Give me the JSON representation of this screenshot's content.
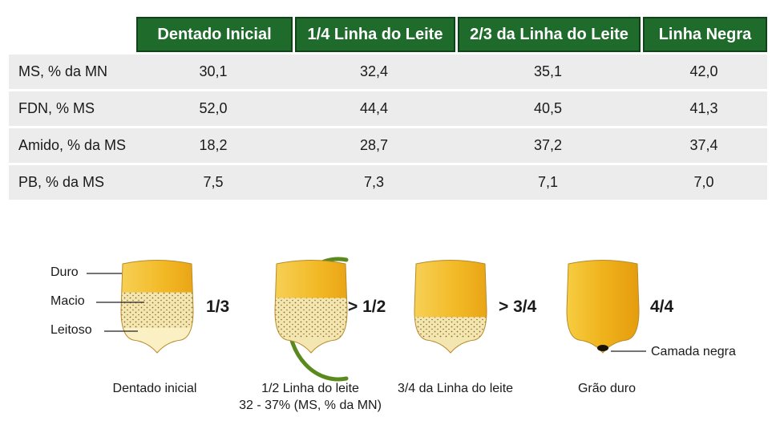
{
  "table": {
    "columns": [
      "Dentado Inicial",
      "1/4 Linha do Leite",
      "2/3 da Linha do Leite",
      "Linha Negra"
    ],
    "rows": [
      {
        "label": "MS, % da MN",
        "values": [
          "30,1",
          "32,4",
          "35,1",
          "42,0"
        ]
      },
      {
        "label": "FDN, % MS",
        "values": [
          "52,0",
          "44,4",
          "40,5",
          "41,3"
        ]
      },
      {
        "label": "Amido, % da MS",
        "values": [
          "18,2",
          "28,7",
          "37,2",
          "37,4"
        ]
      },
      {
        "label": "PB, % da MS",
        "values": [
          "7,5",
          "7,3",
          "7,1",
          "7,0"
        ]
      }
    ]
  },
  "diagram": {
    "layer_labels": {
      "hard": "Duro",
      "soft": "Macio",
      "milky": "Leitoso"
    },
    "kernels": [
      {
        "fraction": "1/3",
        "caption": "Dentado inicial",
        "caption2": "",
        "milk_line_level": 0.333
      },
      {
        "fraction": "> 1/2",
        "caption": "1/2 Linha do leite",
        "caption2": "32 - 37% (MS, % da MN)",
        "milk_line_level": 0.5
      },
      {
        "fraction": "> 3/4",
        "caption": "3/4 da Linha do leite",
        "caption2": "",
        "milk_line_level": 0.75
      },
      {
        "fraction": "4/4",
        "caption": "Grão duro",
        "caption2": "",
        "milk_line_level": 1.0
      }
    ],
    "black_layer_label": "Camada negra",
    "colors": {
      "header_green": "#1f6b2c",
      "ring_green": "#5a8a1e",
      "hard_yellow": "#f2b824",
      "soft_cream": "#f3e6b0",
      "milky_cream": "#fbf0c4"
    }
  }
}
